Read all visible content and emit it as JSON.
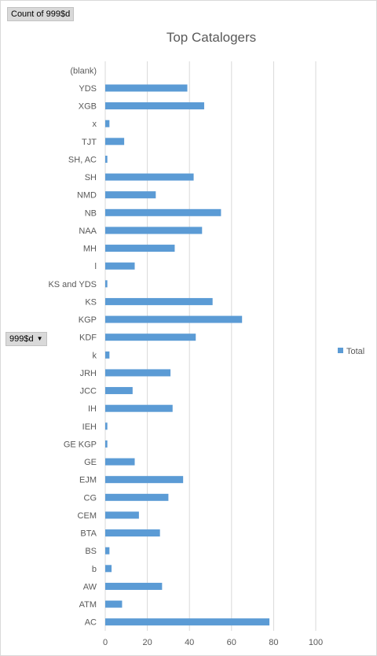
{
  "pivot": {
    "value_field_button": "Count of 999$d",
    "row_field_button": "999$d",
    "row_field_dropdown_icon": "triangle-down-icon"
  },
  "chart_data": {
    "type": "bar",
    "orientation": "horizontal",
    "title": "Top Catalogers",
    "xlabel": "",
    "ylabel": "",
    "categories": [
      "(blank)",
      "YDS",
      "XGB",
      "x",
      "TJT",
      "SH, AC",
      "SH",
      "NMD",
      "NB",
      "NAA",
      "MH",
      "l",
      "KS and YDS",
      "KS",
      "KGP",
      "KDF",
      "k",
      "JRH",
      "JCC",
      "IH",
      "IEH",
      "GE KGP",
      "GE",
      "EJM",
      "CG",
      "CEM",
      "BTA",
      "BS",
      "b",
      "AW",
      "ATM",
      "AC"
    ],
    "series": [
      {
        "name": "Total",
        "color": "#5b9bd5",
        "values": [
          0,
          39,
          47,
          2,
          9,
          1,
          42,
          24,
          55,
          46,
          33,
          14,
          1,
          51,
          65,
          43,
          2,
          31,
          13,
          32,
          1,
          1,
          14,
          37,
          30,
          16,
          26,
          2,
          3,
          27,
          8,
          78
        ]
      }
    ],
    "xlim": [
      0,
      100
    ],
    "xticks": [
      0,
      20,
      40,
      60,
      80,
      100
    ],
    "grid": true,
    "legend_position": "right"
  }
}
